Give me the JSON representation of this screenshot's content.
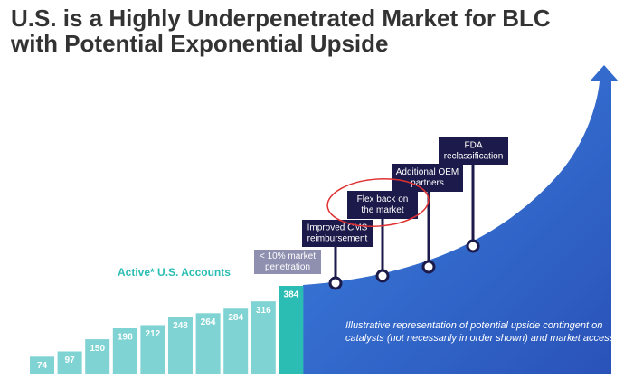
{
  "chart_data": {
    "type": "bar",
    "title": [
      "U.S. is a Highly Underpenetrated Market for BLC",
      "with Potential Exponential Upside"
    ],
    "series_label": "Active* U.S. Accounts",
    "values": [
      74,
      97,
      150,
      198,
      212,
      248,
      264,
      284,
      316,
      384
    ],
    "color": "#7fd3d3",
    "highlight_color": "#2bbdb3",
    "annotations": [
      [
        "< 10% market",
        "penetration"
      ],
      [
        "Improved CMS",
        "reimbursement"
      ],
      [
        "Flex back on",
        "the market"
      ],
      [
        "Additional OEM",
        "partners"
      ],
      [
        "FDA",
        "reclassification"
      ]
    ],
    "note": [
      "Illustrative representation of potential upside contingent on",
      "catalysts (not necessarily in order shown) and market access"
    ]
  }
}
